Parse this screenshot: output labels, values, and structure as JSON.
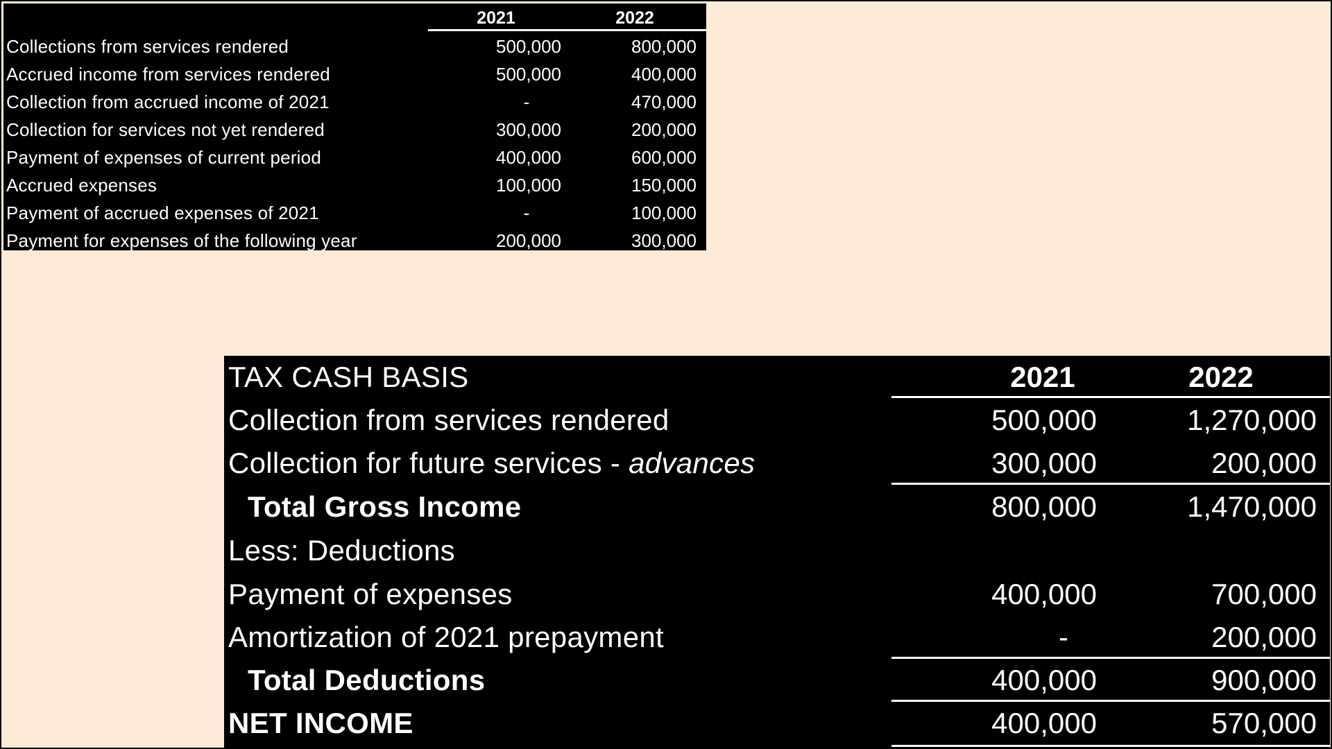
{
  "top_table": {
    "years": [
      "2021",
      "2022"
    ],
    "rows": [
      {
        "label": "Collections from services rendered",
        "y2021": "500,000",
        "y2022": "800,000"
      },
      {
        "label": "Accrued income from services rendered",
        "y2021": "500,000",
        "y2022": "400,000"
      },
      {
        "label": "Collection from accrued income of 2021",
        "y2021": "-",
        "y2022": "470,000"
      },
      {
        "label": "Collection for services not yet rendered",
        "y2021": "300,000",
        "y2022": "200,000"
      },
      {
        "label": "Payment of expenses of current period",
        "y2021": "400,000",
        "y2022": "600,000"
      },
      {
        "label": "Accrued expenses",
        "y2021": "100,000",
        "y2022": "150,000"
      },
      {
        "label": "Payment of accrued expenses of 2021",
        "y2021": "-",
        "y2022": "100,000"
      },
      {
        "label": "Payment for expenses of the following year",
        "y2021": "200,000",
        "y2022": "300,000"
      }
    ]
  },
  "tax_table": {
    "title": "TAX CASH BASIS",
    "years": [
      "2021",
      "2022"
    ],
    "rows": [
      {
        "label": "Collection from services rendered",
        "y2021": "500,000",
        "y2022": "1,270,000"
      },
      {
        "label_main": "Collection for future services - ",
        "label_italic": "advances",
        "y2021": "300,000",
        "y2022": "200,000"
      },
      {
        "label": "Total Gross Income",
        "y2021": "800,000",
        "y2022": "1,470,000"
      },
      {
        "label": "Less: Deductions",
        "y2021": "",
        "y2022": ""
      },
      {
        "label": "Payment of expenses",
        "y2021": "400,000",
        "y2022": "700,000"
      },
      {
        "label": "Amortization of 2021 prepayment",
        "y2021": "-",
        "y2022": "200,000"
      },
      {
        "label": "Total Deductions",
        "y2021": "400,000",
        "y2022": "900,000"
      },
      {
        "label": "NET INCOME",
        "y2021": "400,000",
        "y2022": "570,000"
      }
    ]
  }
}
